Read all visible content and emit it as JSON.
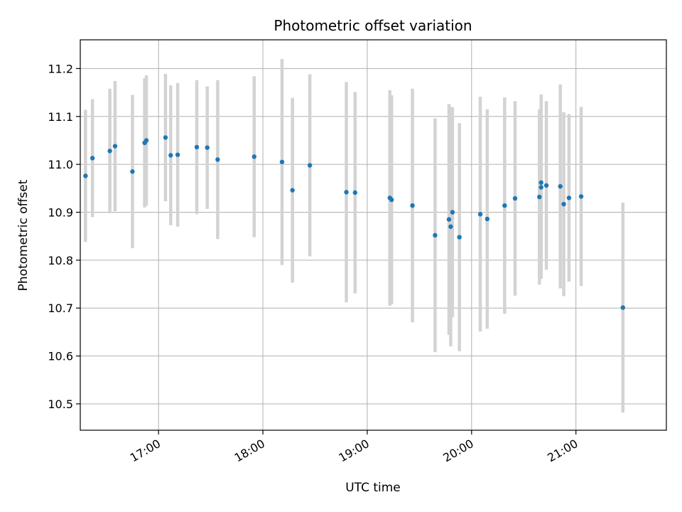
{
  "chart_data": {
    "type": "scatter",
    "title": "Photometric offset variation",
    "xlabel": "UTC time",
    "ylabel": "Photometric offset",
    "grid": true,
    "x_ticks": [
      "17:00",
      "18:00",
      "19:00",
      "20:00",
      "21:00"
    ],
    "y_ticks": [
      "10.5",
      "10.6",
      "10.7",
      "10.8",
      "10.9",
      "11.0",
      "11.1",
      "11.2"
    ],
    "xlim": [
      "16:15",
      "21:52"
    ],
    "ylim": [
      10.445,
      11.26
    ],
    "colors": {
      "point": "#1f77b4",
      "errorbar": "#d3d3d3",
      "grid": "#b0b0b0"
    },
    "points": [
      {
        "x": "16:18",
        "y": 10.976,
        "err": 0.138
      },
      {
        "x": "16:22",
        "y": 11.013,
        "err": 0.123
      },
      {
        "x": "16:32",
        "y": 11.028,
        "err": 0.13
      },
      {
        "x": "16:35",
        "y": 11.038,
        "err": 0.136
      },
      {
        "x": "16:45",
        "y": 10.985,
        "err": 0.16
      },
      {
        "x": "16:52",
        "y": 11.045,
        "err": 0.135
      },
      {
        "x": "16:53",
        "y": 11.05,
        "err": 0.136
      },
      {
        "x": "17:04",
        "y": 11.056,
        "err": 0.133
      },
      {
        "x": "17:07",
        "y": 11.019,
        "err": 0.146
      },
      {
        "x": "17:11",
        "y": 11.02,
        "err": 0.15
      },
      {
        "x": "17:22",
        "y": 11.036,
        "err": 0.14
      },
      {
        "x": "17:28",
        "y": 11.035,
        "err": 0.128
      },
      {
        "x": "17:34",
        "y": 11.01,
        "err": 0.166
      },
      {
        "x": "17:55",
        "y": 11.016,
        "err": 0.168
      },
      {
        "x": "18:11",
        "y": 11.005,
        "err": 0.215
      },
      {
        "x": "18:17",
        "y": 10.946,
        "err": 0.193
      },
      {
        "x": "18:27",
        "y": 10.998,
        "err": 0.19
      },
      {
        "x": "18:48",
        "y": 10.942,
        "err": 0.23
      },
      {
        "x": "18:53",
        "y": 10.941,
        "err": 0.21
      },
      {
        "x": "19:13",
        "y": 10.93,
        "err": 0.225
      },
      {
        "x": "19:14",
        "y": 10.926,
        "err": 0.218
      },
      {
        "x": "19:26",
        "y": 10.914,
        "err": 0.244
      },
      {
        "x": "19:39",
        "y": 10.852,
        "err": 0.244
      },
      {
        "x": "19:47",
        "y": 10.885,
        "err": 0.241
      },
      {
        "x": "19:48",
        "y": 10.87,
        "err": 0.25
      },
      {
        "x": "19:49",
        "y": 10.9,
        "err": 0.219
      },
      {
        "x": "19:53",
        "y": 10.848,
        "err": 0.238
      },
      {
        "x": "20:05",
        "y": 10.896,
        "err": 0.245
      },
      {
        "x": "20:09",
        "y": 10.886,
        "err": 0.229
      },
      {
        "x": "20:19",
        "y": 10.914,
        "err": 0.226
      },
      {
        "x": "20:25",
        "y": 10.929,
        "err": 0.203
      },
      {
        "x": "20:39",
        "y": 10.932,
        "err": 0.183
      },
      {
        "x": "20:40",
        "y": 10.952,
        "err": 0.191
      },
      {
        "x": "20:40",
        "y": 10.962,
        "err": 0.184
      },
      {
        "x": "20:43",
        "y": 10.956,
        "err": 0.176
      },
      {
        "x": "20:51",
        "y": 10.954,
        "err": 0.213
      },
      {
        "x": "20:53",
        "y": 10.917,
        "err": 0.192
      },
      {
        "x": "20:56",
        "y": 10.93,
        "err": 0.175
      },
      {
        "x": "21:03",
        "y": 10.933,
        "err": 0.187
      },
      {
        "x": "21:27",
        "y": 10.701,
        "err": 0.219
      }
    ]
  }
}
